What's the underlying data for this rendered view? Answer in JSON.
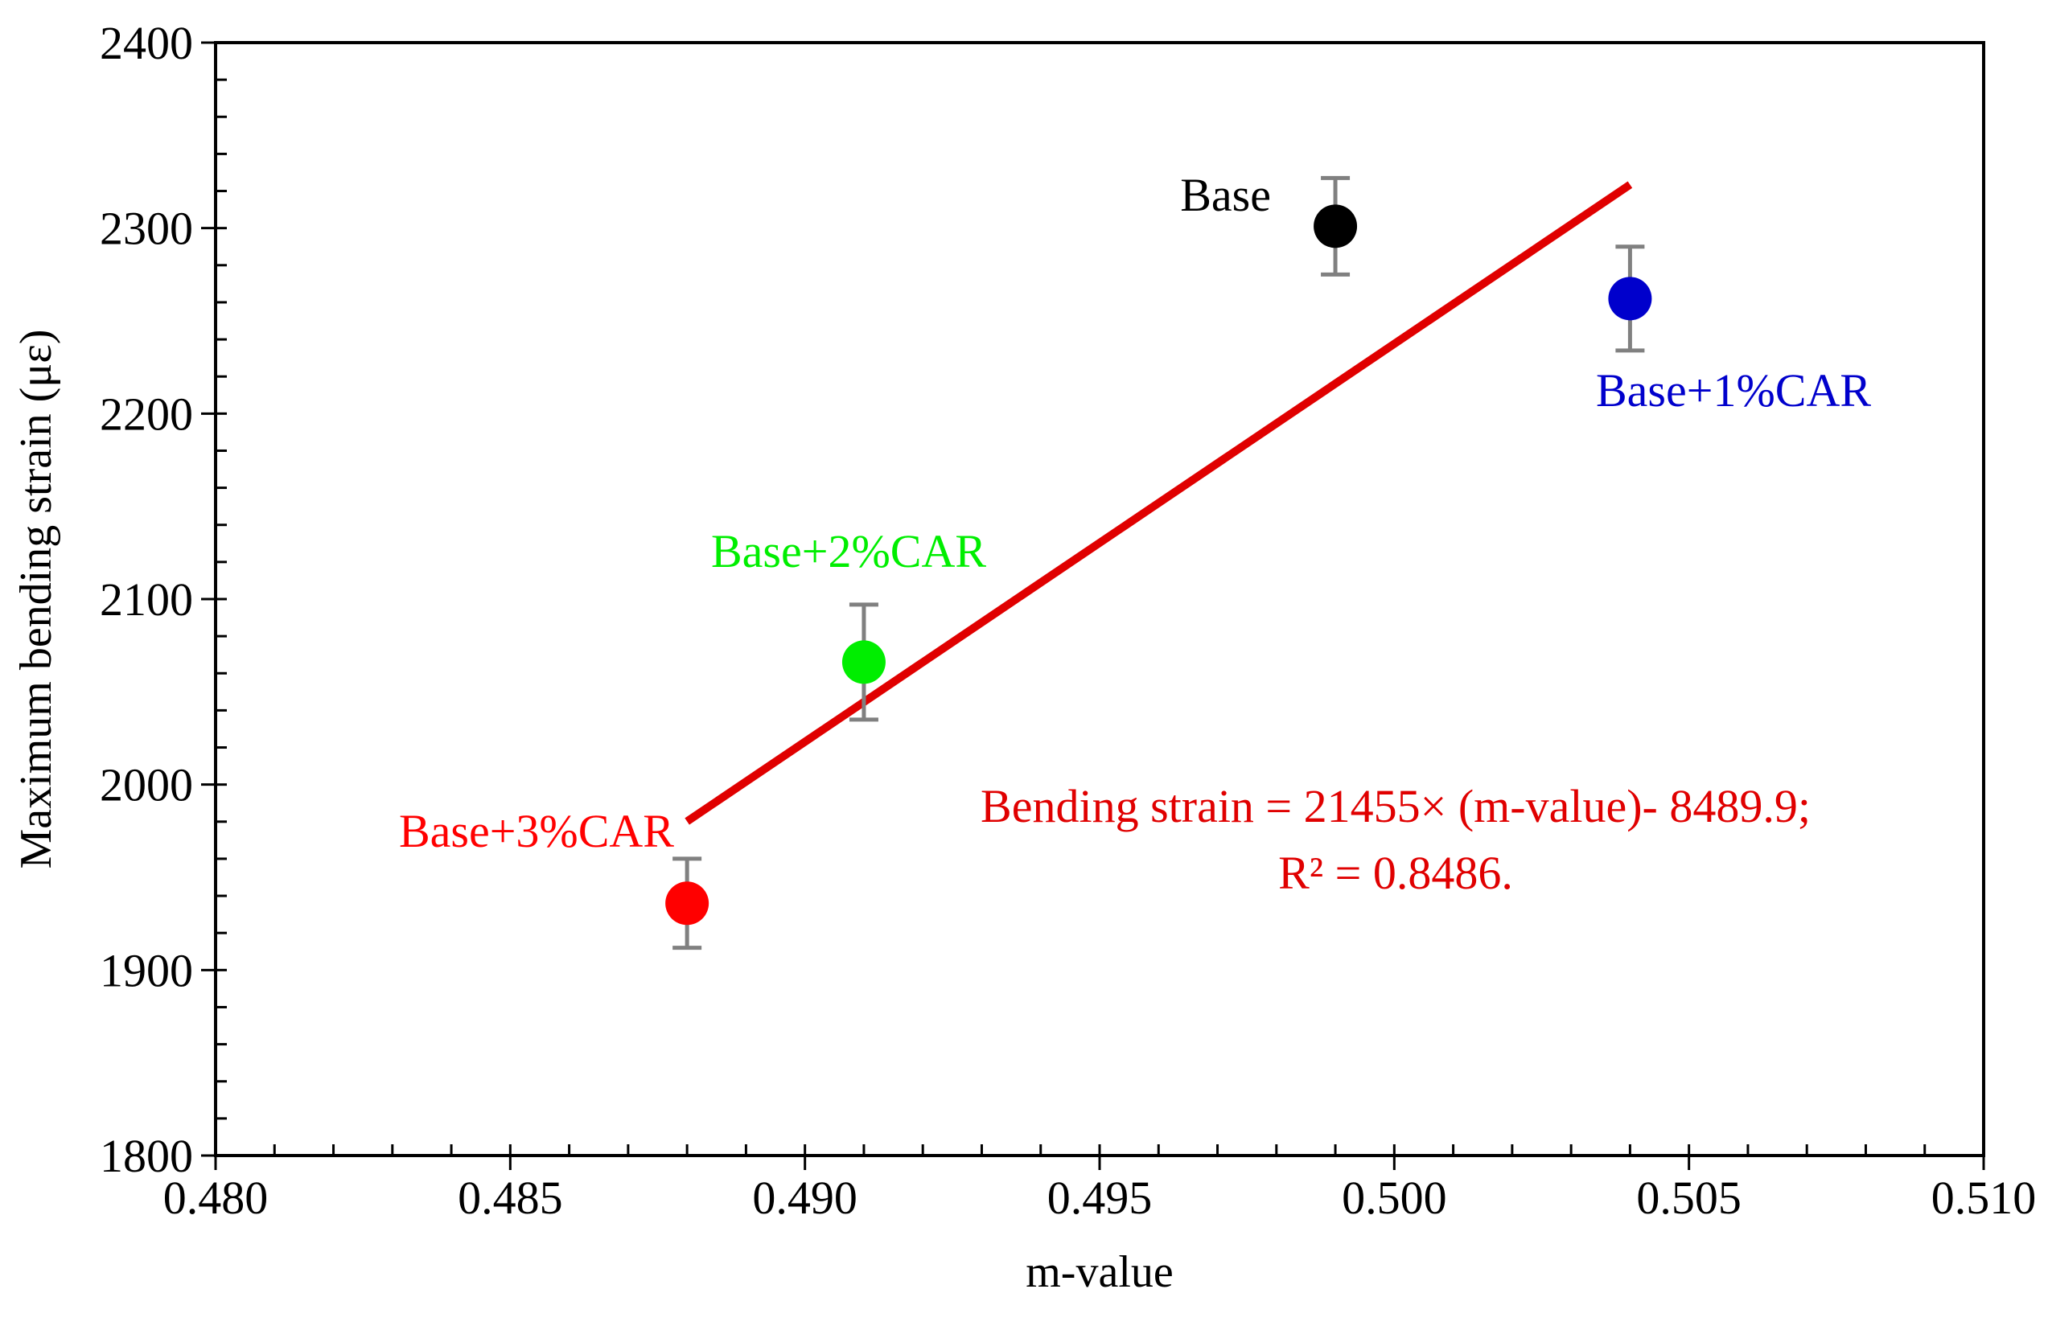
{
  "chart_data": {
    "type": "scatter",
    "title": "",
    "xlabel": "m-value",
    "ylabel": "Maximum bending strain (με)",
    "xlim": [
      0.48,
      0.51
    ],
    "ylim": [
      1800,
      2400
    ],
    "x_ticks": [
      "0.480",
      "0.485",
      "0.490",
      "0.495",
      "0.500",
      "0.505",
      "0.510"
    ],
    "x_tick_values": [
      0.48,
      0.485,
      0.49,
      0.495,
      0.5,
      0.505,
      0.51
    ],
    "y_ticks": [
      "1800",
      "1900",
      "2000",
      "2100",
      "2200",
      "2300",
      "2400"
    ],
    "y_tick_values": [
      1800,
      1900,
      2000,
      2100,
      2200,
      2300,
      2400
    ],
    "x_minor_step": 0.001,
    "y_minor_step": 20,
    "grid": false,
    "points": [
      {
        "name": "Base",
        "label": "Base",
        "x": 0.499,
        "y": 2301,
        "err": 26,
        "color": "#000000",
        "label_position": "left-above"
      },
      {
        "name": "Base+1%CAR",
        "label": "Base+1%CAR",
        "x": 0.504,
        "y": 2262,
        "err": 28,
        "color": "#0000cc",
        "label_position": "below"
      },
      {
        "name": "Base+2%CAR",
        "label": "Base+2%CAR",
        "x": 0.491,
        "y": 2066,
        "err": 31,
        "color": "#00ee00",
        "label_position": "above"
      },
      {
        "name": "Base+3%CAR",
        "label": "Base+3%CAR",
        "x": 0.488,
        "y": 1936,
        "err": 24,
        "color": "#ff0000",
        "label_position": "left-above"
      }
    ],
    "error_bar_color": "#808080",
    "trendline": {
      "slope": 21455,
      "intercept": -8489.9,
      "x_range": [
        0.488,
        0.504
      ],
      "color": "#e00000",
      "equation_text": "Bending strain = 21455× (m-value)- 8489.9;",
      "r2_text": "R² = 0.8486."
    }
  }
}
